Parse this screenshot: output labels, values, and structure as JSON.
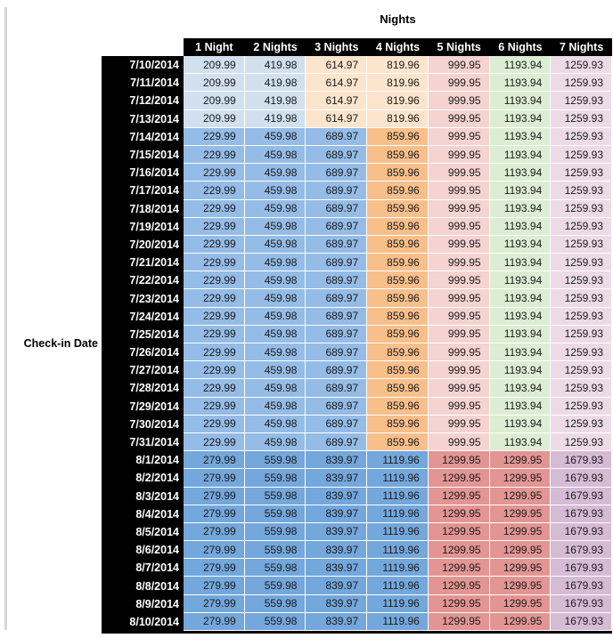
{
  "title": "Nights",
  "row_axis_label": "Check-in Date",
  "columns": [
    "1 Night",
    "2 Nights",
    "3 Nights",
    "4 Nights",
    "5 Nights",
    "6 Nights",
    "7 Nights"
  ],
  "colors": {
    "header_bg": "#000000",
    "header_text": "#ffffff",
    "light_blue": "#d0e0ef",
    "light_orange": "#fce5cc",
    "light_red": "#f5d3d0",
    "light_green": "#dcedd3",
    "light_purple": "#ecdbe6",
    "med_blue": "#94bce6",
    "orange": "#f8bf8a",
    "aug_blue": "#74a7db",
    "aug_red": "#e29592",
    "aug_purple": "#d6bbd5"
  },
  "group_styles": {
    "A": [
      "light_blue",
      "light_blue",
      "light_orange",
      "light_orange",
      "light_red",
      "light_green",
      "light_purple"
    ],
    "B": [
      "med_blue",
      "med_blue",
      "med_blue",
      "orange",
      "light_red",
      "light_green",
      "light_purple"
    ],
    "C": [
      "aug_blue",
      "aug_blue",
      "aug_blue",
      "aug_blue",
      "aug_red",
      "aug_red",
      "aug_purple"
    ]
  },
  "rows": [
    {
      "date": "7/10/2014",
      "group": "A",
      "values": [
        "209.99",
        "419.98",
        "614.97",
        "819.96",
        "999.95",
        "1193.94",
        "1259.93"
      ]
    },
    {
      "date": "7/11/2014",
      "group": "A",
      "values": [
        "209.99",
        "419.98",
        "614.97",
        "819.96",
        "999.95",
        "1193.94",
        "1259.93"
      ]
    },
    {
      "date": "7/12/2014",
      "group": "A",
      "values": [
        "209.99",
        "419.98",
        "614.97",
        "819.96",
        "999.95",
        "1193.94",
        "1259.93"
      ]
    },
    {
      "date": "7/13/2014",
      "group": "A",
      "values": [
        "209.99",
        "419.98",
        "614.97",
        "819.96",
        "999.95",
        "1193.94",
        "1259.93"
      ]
    },
    {
      "date": "7/14/2014",
      "group": "B",
      "values": [
        "229.99",
        "459.98",
        "689.97",
        "859.96",
        "999.95",
        "1193.94",
        "1259.93"
      ]
    },
    {
      "date": "7/15/2014",
      "group": "B",
      "values": [
        "229.99",
        "459.98",
        "689.97",
        "859.96",
        "999.95",
        "1193.94",
        "1259.93"
      ]
    },
    {
      "date": "7/16/2014",
      "group": "B",
      "values": [
        "229.99",
        "459.98",
        "689.97",
        "859.96",
        "999.95",
        "1193.94",
        "1259.93"
      ]
    },
    {
      "date": "7/17/2014",
      "group": "B",
      "values": [
        "229.99",
        "459.98",
        "689.97",
        "859.96",
        "999.95",
        "1193.94",
        "1259.93"
      ]
    },
    {
      "date": "7/18/2014",
      "group": "B",
      "values": [
        "229.99",
        "459.98",
        "689.97",
        "859.96",
        "999.95",
        "1193.94",
        "1259.93"
      ]
    },
    {
      "date": "7/19/2014",
      "group": "B",
      "values": [
        "229.99",
        "459.98",
        "689.97",
        "859.96",
        "999.95",
        "1193.94",
        "1259.93"
      ]
    },
    {
      "date": "7/20/2014",
      "group": "B",
      "values": [
        "229.99",
        "459.98",
        "689.97",
        "859.96",
        "999.95",
        "1193.94",
        "1259.93"
      ]
    },
    {
      "date": "7/21/2014",
      "group": "B",
      "values": [
        "229.99",
        "459.98",
        "689.97",
        "859.96",
        "999.95",
        "1193.94",
        "1259.93"
      ]
    },
    {
      "date": "7/22/2014",
      "group": "B",
      "values": [
        "229.99",
        "459.98",
        "689.97",
        "859.96",
        "999.95",
        "1193.94",
        "1259.93"
      ]
    },
    {
      "date": "7/23/2014",
      "group": "B",
      "values": [
        "229.99",
        "459.98",
        "689.97",
        "859.96",
        "999.95",
        "1193.94",
        "1259.93"
      ]
    },
    {
      "date": "7/24/2014",
      "group": "B",
      "values": [
        "229.99",
        "459.98",
        "689.97",
        "859.96",
        "999.95",
        "1193.94",
        "1259.93"
      ]
    },
    {
      "date": "7/25/2014",
      "group": "B",
      "values": [
        "229.99",
        "459.98",
        "689.97",
        "859.96",
        "999.95",
        "1193.94",
        "1259.93"
      ]
    },
    {
      "date": "7/26/2014",
      "group": "B",
      "values": [
        "229.99",
        "459.98",
        "689.97",
        "859.96",
        "999.95",
        "1193.94",
        "1259.93"
      ]
    },
    {
      "date": "7/27/2014",
      "group": "B",
      "values": [
        "229.99",
        "459.98",
        "689.97",
        "859.96",
        "999.95",
        "1193.94",
        "1259.93"
      ]
    },
    {
      "date": "7/28/2014",
      "group": "B",
      "values": [
        "229.99",
        "459.98",
        "689.97",
        "859.96",
        "999.95",
        "1193.94",
        "1259.93"
      ]
    },
    {
      "date": "7/29/2014",
      "group": "B",
      "values": [
        "229.99",
        "459.98",
        "689.97",
        "859.96",
        "999.95",
        "1193.94",
        "1259.93"
      ]
    },
    {
      "date": "7/30/2014",
      "group": "B",
      "values": [
        "229.99",
        "459.98",
        "689.97",
        "859.96",
        "999.95",
        "1193.94",
        "1259.93"
      ]
    },
    {
      "date": "7/31/2014",
      "group": "B",
      "values": [
        "229.99",
        "459.98",
        "689.97",
        "859.96",
        "999.95",
        "1193.94",
        "1259.93"
      ]
    },
    {
      "date": "8/1/2014",
      "group": "C",
      "values": [
        "279.99",
        "559.98",
        "839.97",
        "1119.96",
        "1299.95",
        "1299.95",
        "1679.93"
      ]
    },
    {
      "date": "8/2/2014",
      "group": "C",
      "values": [
        "279.99",
        "559.98",
        "839.97",
        "1119.96",
        "1299.95",
        "1299.95",
        "1679.93"
      ]
    },
    {
      "date": "8/3/2014",
      "group": "C",
      "values": [
        "279.99",
        "559.98",
        "839.97",
        "1119.96",
        "1299.95",
        "1299.95",
        "1679.93"
      ]
    },
    {
      "date": "8/4/2014",
      "group": "C",
      "values": [
        "279.99",
        "559.98",
        "839.97",
        "1119.96",
        "1299.95",
        "1299.95",
        "1679.93"
      ]
    },
    {
      "date": "8/5/2014",
      "group": "C",
      "values": [
        "279.99",
        "559.98",
        "839.97",
        "1119.96",
        "1299.95",
        "1299.95",
        "1679.93"
      ]
    },
    {
      "date": "8/6/2014",
      "group": "C",
      "values": [
        "279.99",
        "559.98",
        "839.97",
        "1119.96",
        "1299.95",
        "1299.95",
        "1679.93"
      ]
    },
    {
      "date": "8/7/2014",
      "group": "C",
      "values": [
        "279.99",
        "559.98",
        "839.97",
        "1119.96",
        "1299.95",
        "1299.95",
        "1679.93"
      ]
    },
    {
      "date": "8/8/2014",
      "group": "C",
      "values": [
        "279.99",
        "559.98",
        "839.97",
        "1119.96",
        "1299.95",
        "1299.95",
        "1679.93"
      ]
    },
    {
      "date": "8/9/2014",
      "group": "C",
      "values": [
        "279.99",
        "559.98",
        "839.97",
        "1119.96",
        "1299.95",
        "1299.95",
        "1679.93"
      ]
    },
    {
      "date": "8/10/2014",
      "group": "C",
      "values": [
        "279.99",
        "559.98",
        "839.97",
        "1119.96",
        "1299.95",
        "1299.95",
        "1679.93"
      ]
    }
  ]
}
